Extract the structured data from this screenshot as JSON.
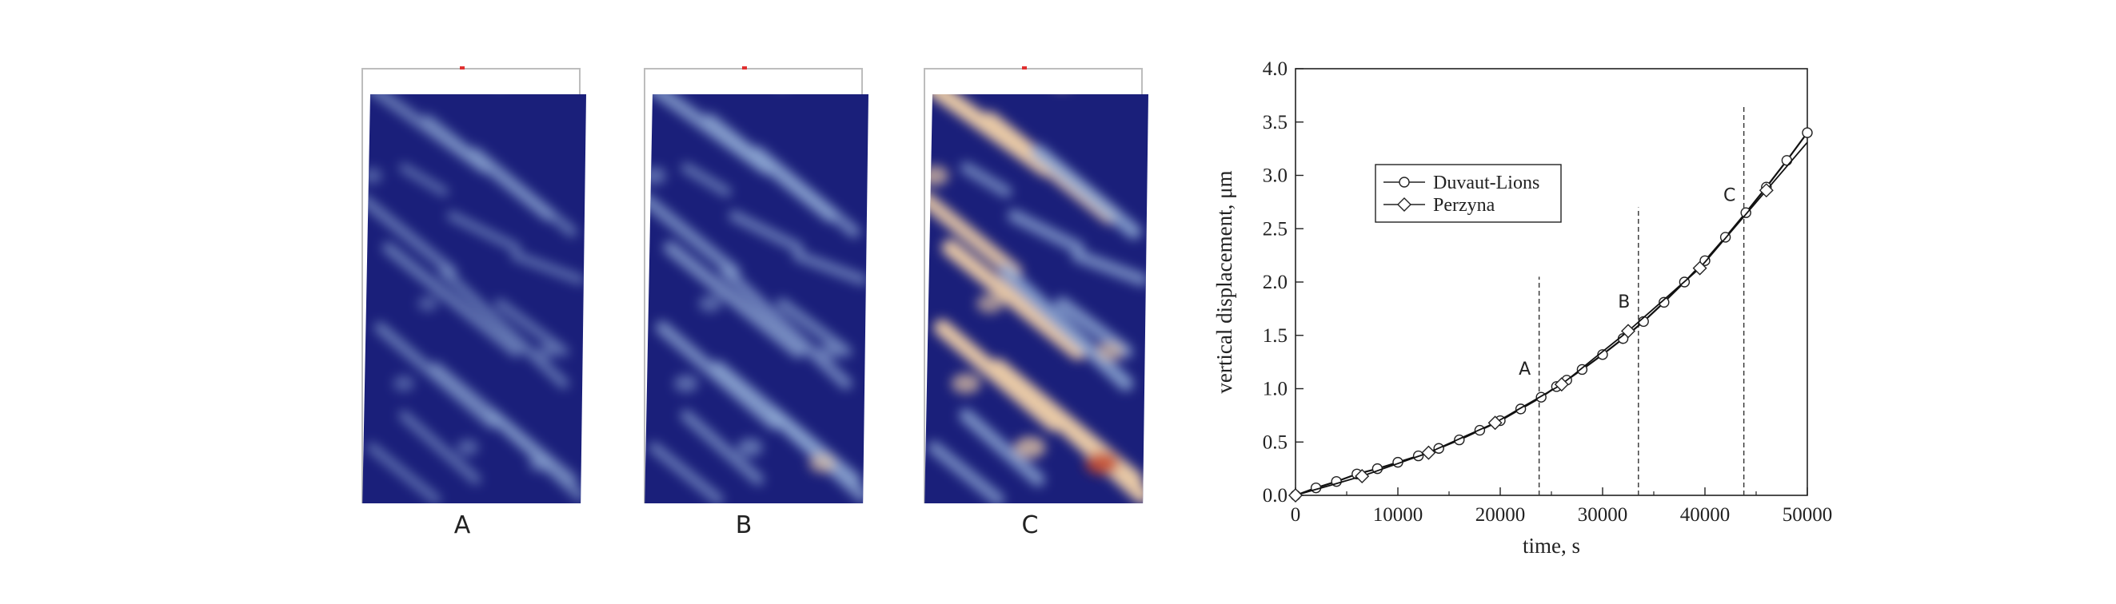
{
  "panels": [
    {
      "label": "A",
      "intensity": 0.35
    },
    {
      "label": "B",
      "intensity": 0.6
    },
    {
      "label": "C",
      "intensity": 1.0
    }
  ],
  "colors": {
    "field_background": "#1a1f7a",
    "field_low": "#8fa9d4",
    "field_mid": "#e8c9a6",
    "field_high": "#c2452a",
    "frame": "#bdbdbd",
    "marker": "#e03030"
  },
  "chart_data": {
    "type": "line",
    "xlabel": "time, s",
    "ylabel": "vertical displacement, μm",
    "xlim": [
      0,
      50000
    ],
    "ylim": [
      0,
      4.0
    ],
    "x_ticks": [
      0,
      10000,
      20000,
      30000,
      40000,
      50000
    ],
    "x_tick_labels": [
      "0",
      "10000",
      "20000",
      "30000",
      "40000",
      "50000"
    ],
    "y_ticks": [
      0,
      0.5,
      1.0,
      1.5,
      2.0,
      2.5,
      3.0,
      3.5,
      4.0
    ],
    "y_tick_labels": [
      "0.0",
      "0.5",
      "1.0",
      "1.5",
      "2.0",
      "2.5",
      "3.0",
      "3.5",
      "4.0"
    ],
    "legend_position": "top-left",
    "series": [
      {
        "name": "Duvaut-Lions",
        "marker": "circle",
        "x": [
          0,
          2000,
          4000,
          6000,
          8000,
          10000,
          12000,
          14000,
          16000,
          18000,
          20000,
          22000,
          24000,
          25500,
          26500,
          28000,
          30000,
          32000,
          34000,
          36000,
          38000,
          40000,
          42000,
          44000,
          46000,
          48000,
          50000
        ],
        "y": [
          0,
          0.07,
          0.13,
          0.2,
          0.25,
          0.31,
          0.37,
          0.44,
          0.52,
          0.61,
          0.7,
          0.81,
          0.92,
          1.02,
          1.08,
          1.18,
          1.32,
          1.47,
          1.63,
          1.81,
          2.0,
          2.2,
          2.42,
          2.65,
          2.89,
          3.14,
          3.4
        ]
      },
      {
        "name": "Perzyna",
        "marker": "diamond",
        "x": [
          0,
          6500,
          13000,
          19500,
          26000,
          32500,
          39500,
          46000
        ],
        "y": [
          0,
          0.18,
          0.4,
          0.68,
          1.04,
          1.54,
          2.13,
          2.86
        ]
      }
    ],
    "vertical_lines": [
      {
        "label": "A",
        "x": 23800,
        "y_top": 2.05,
        "label_y": 1.07
      },
      {
        "label": "B",
        "x": 33500,
        "y_top": 2.7,
        "label_y": 1.7
      },
      {
        "label": "C",
        "x": 43800,
        "y_top": 3.65,
        "label_y": 2.7
      }
    ]
  }
}
